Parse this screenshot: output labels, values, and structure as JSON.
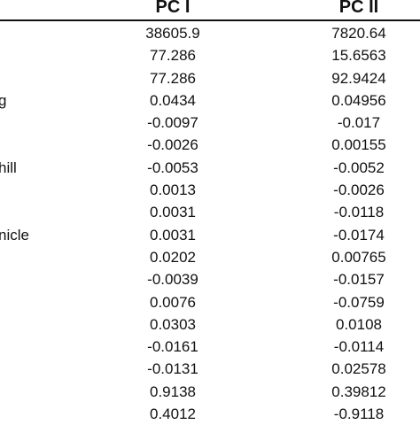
{
  "table": {
    "headers": [
      "PC I",
      "PC II"
    ],
    "rows": [
      {
        "label": "",
        "pc1": "38605.9",
        "pc2": "7820.64"
      },
      {
        "label": "",
        "pc1": "77.286",
        "pc2": "15.6563"
      },
      {
        "label": "",
        "pc1": "77.286",
        "pc2": "92.9424"
      },
      {
        "label": "g",
        "pc1": "0.0434",
        "pc2": "0.04956"
      },
      {
        "label": "",
        "pc1": "-0.0097",
        "pc2": "-0.017"
      },
      {
        "label": "",
        "pc1": "-0.0026",
        "pc2": "0.00155"
      },
      {
        "label": "hill",
        "pc1": "-0.0053",
        "pc2": "-0.0052"
      },
      {
        "label": "",
        "pc1": "0.0013",
        "pc2": "-0.0026"
      },
      {
        "label": "",
        "pc1": "0.0031",
        "pc2": "-0.0118"
      },
      {
        "label": "nicle",
        "pc1": "0.0031",
        "pc2": "-0.0174"
      },
      {
        "label": "",
        "pc1": "0.0202",
        "pc2": "0.00765"
      },
      {
        "label": "",
        "pc1": "-0.0039",
        "pc2": "-0.0157"
      },
      {
        "label": "",
        "pc1": "0.0076",
        "pc2": "-0.0759"
      },
      {
        "label": "",
        "pc1": "0.0303",
        "pc2": "0.0108"
      },
      {
        "label": "",
        "pc1": "-0.0161",
        "pc2": "-0.0114"
      },
      {
        "label": "",
        "pc1": "-0.0131",
        "pc2": "0.02578"
      },
      {
        "label": "",
        "pc1": "0.9138",
        "pc2": "0.39812"
      },
      {
        "label": "",
        "pc1": "0.4012",
        "pc2": "-0.9118"
      }
    ]
  }
}
